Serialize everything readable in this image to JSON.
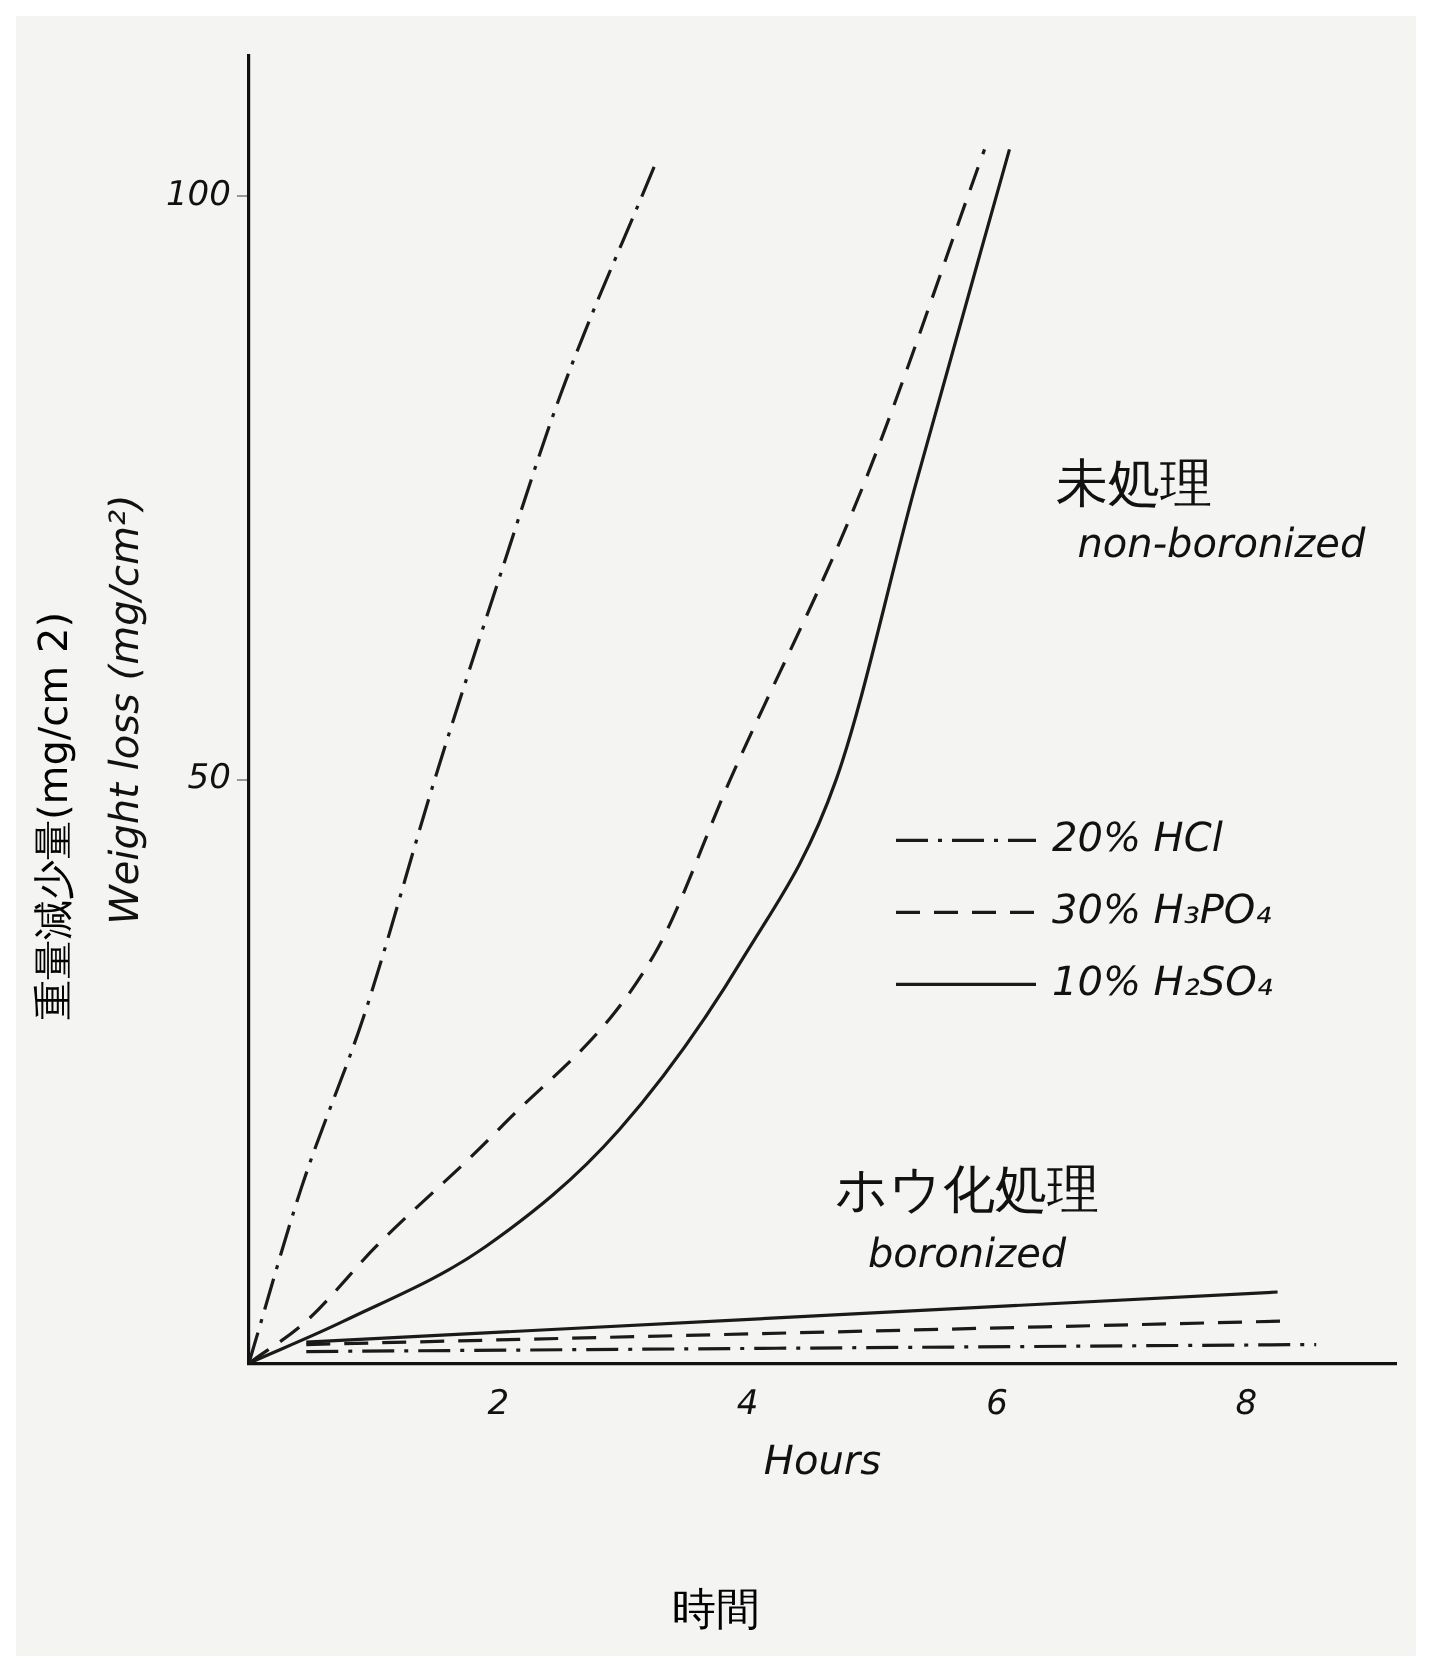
{
  "chart_data": {
    "type": "line",
    "xlabel": "Hours",
    "ylabel": "Weight loss (mg/cm²)",
    "xlim": [
      0,
      9.2
    ],
    "ylim": [
      0,
      112
    ],
    "xticks": [
      2,
      4,
      6,
      8
    ],
    "yticks": [
      50,
      100
    ],
    "grid": false,
    "legend": "right",
    "marker": "none",
    "series": [
      {
        "name": "20% HCl",
        "color": "#1a1a1a",
        "line_style": "dashdot",
        "x": [
          0,
          0.42,
          0.93,
          1.49,
          2,
          2.5,
          3.25
        ],
        "values": [
          0,
          15,
          30,
          50,
          67,
          83,
          102.5
        ]
      },
      {
        "name": "30% H₃PO₄",
        "color": "#1a1a1a",
        "line_style": "dashed",
        "x": [
          0,
          0.46,
          1.02,
          2,
          3.25,
          3.86,
          4.92,
          5.9
        ],
        "values": [
          0,
          3.6,
          10,
          20,
          35,
          50,
          75,
          104
        ]
      },
      {
        "name": "10% H₂SO₄",
        "color": "#1a1a1a",
        "line_style": "solid",
        "x": [
          0,
          0.76,
          1.9,
          2.97,
          3.98,
          4.71,
          5.34,
          6.1
        ],
        "values": [
          0,
          3.6,
          10,
          20,
          35,
          50,
          75,
          104
        ]
      },
      {
        "color": "#1a1a1a",
        "line_style": "solid",
        "x": [
          0.46,
          8.25
        ],
        "values": [
          1.8,
          6.1
        ]
      },
      {
        "color": "#1a1a1a",
        "line_style": "dashed",
        "x": [
          0.46,
          8.27
        ],
        "values": [
          1.6,
          3.6
        ]
      },
      {
        "color": "#1a1a1a",
        "line_style": "dashdot",
        "x": [
          0.46,
          8.56
        ],
        "values": [
          1,
          1.6
        ]
      }
    ],
    "annotations": [
      "未処理",
      "non-boronized",
      "ホウ化処理",
      "boronized",
      "時間",
      "重量減少量(mg/cm 2)"
    ]
  }
}
